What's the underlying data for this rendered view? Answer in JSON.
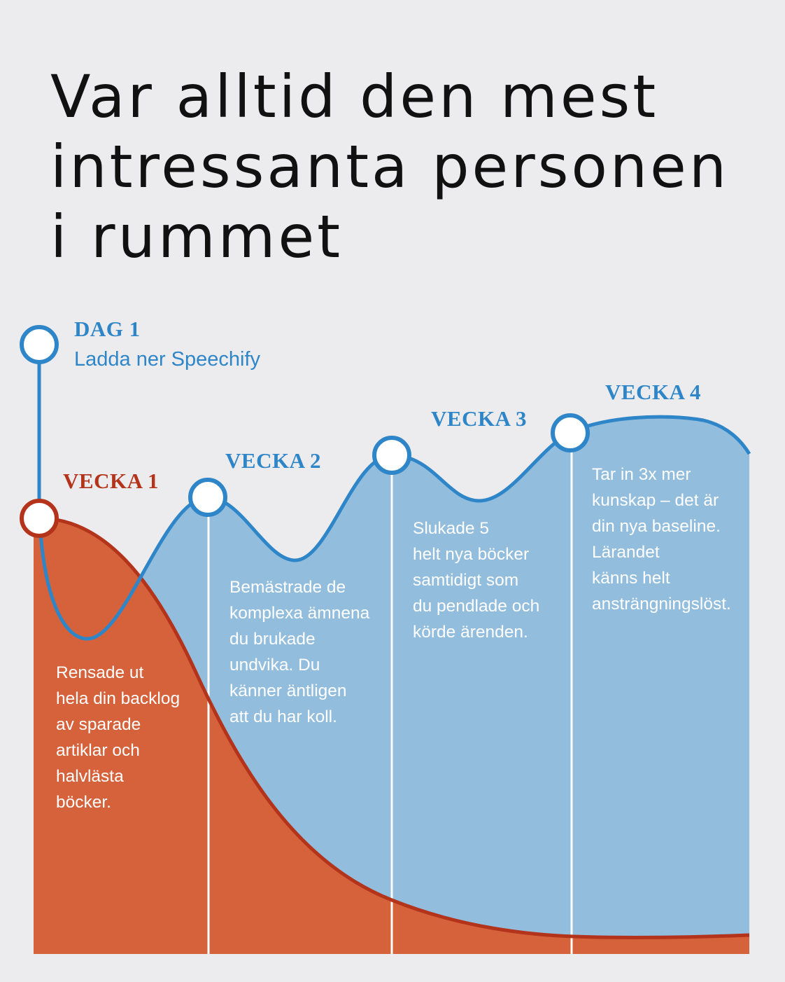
{
  "title": {
    "line1": "Var alltid den mest",
    "line2": "intressanta personen",
    "line3": "i rummet"
  },
  "milestones": {
    "dag1": {
      "label": "DAG 1",
      "text": "Ladda ner Speechify"
    },
    "vecka1": {
      "label": "VECKA 1",
      "text": "Rensade ut\nhela din backlog\nav sparade\nartiklar och\nhalvlästa\nböcker."
    },
    "vecka2": {
      "label": "VECKA 2",
      "text": "Bemästrade de\nkomplexa ämnena\ndu brukade\nundvika. Du\nkänner äntligen\natt du har koll."
    },
    "vecka3": {
      "label": "VECKA 3",
      "text": "Slukade 5\nhelt nya böcker\nsamtidigt som\ndu pendlade och\nkörde ärenden."
    },
    "vecka4": {
      "label": "VECKA 4",
      "text": "Tar in 3x mer\nkunskap – det är\ndin nya baseline.\nLärandet\nkänns helt\nansträngningslöst."
    }
  },
  "colors": {
    "background": "#ececee",
    "blue_line": "#2e86c8",
    "blue_fill": "#92bddd",
    "red_line": "#b3341a",
    "red_fill": "#d6623b"
  }
}
